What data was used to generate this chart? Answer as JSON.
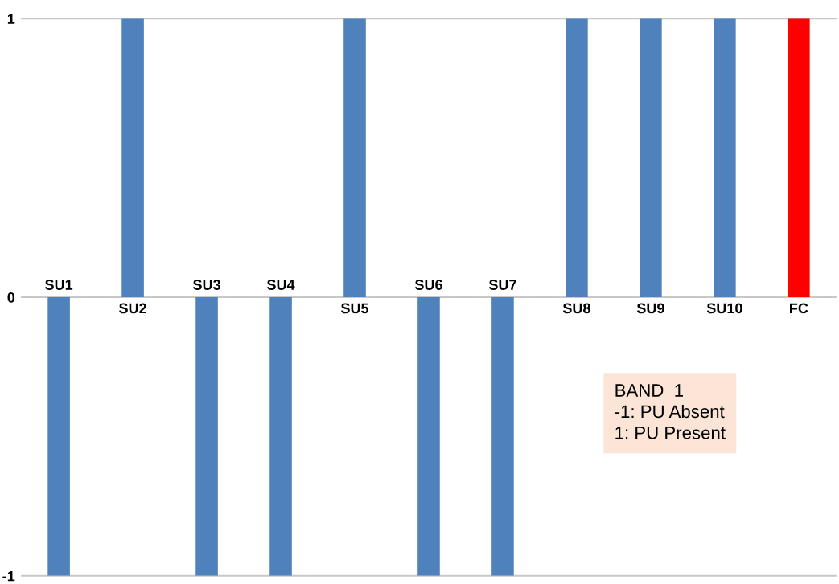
{
  "chart_data": {
    "type": "bar",
    "categories": [
      "SU1",
      "SU2",
      "SU3",
      "SU4",
      "SU5",
      "SU6",
      "SU7",
      "SU8",
      "SU9",
      "SU10",
      "FC"
    ],
    "values": [
      -1,
      1,
      -1,
      -1,
      1,
      -1,
      -1,
      1,
      1,
      1,
      1
    ],
    "colors": [
      "#4f81bd",
      "#4f81bd",
      "#4f81bd",
      "#4f81bd",
      "#4f81bd",
      "#4f81bd",
      "#4f81bd",
      "#4f81bd",
      "#4f81bd",
      "#4f81bd",
      "#ff0000"
    ],
    "ylim": [
      -1,
      1
    ],
    "yticks": [
      -1,
      0,
      1
    ],
    "annotations": [
      "BAND  1\n-1: PU Absent\n1: PU Present"
    ]
  }
}
